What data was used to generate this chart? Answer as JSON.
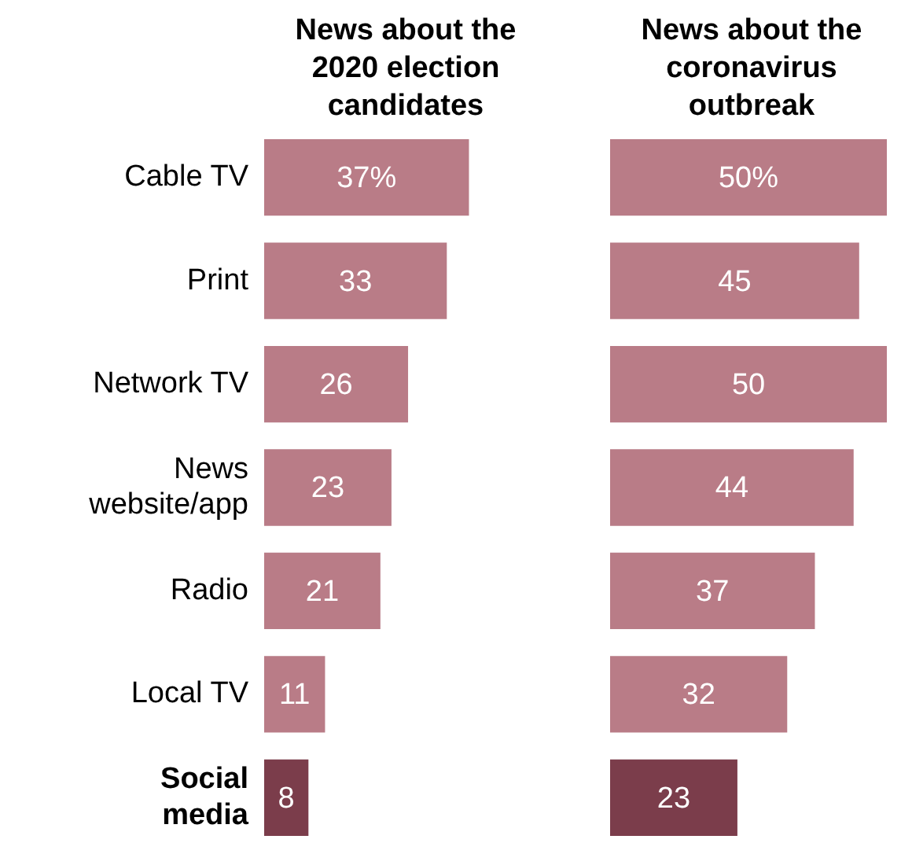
{
  "chart_data": [
    {
      "type": "bar",
      "orientation": "horizontal",
      "title": "News about the 2020 election candidates",
      "categories": [
        "Cable TV",
        "Print",
        "Network TV",
        "News website/app",
        "Radio",
        "Local TV",
        "Social media"
      ],
      "values": [
        37,
        33,
        26,
        23,
        21,
        11,
        8
      ],
      "value_labels": [
        "37%",
        "33",
        "26",
        "23",
        "21",
        "11",
        "8"
      ],
      "colors": [
        "#b97c87",
        "#b97c87",
        "#b97c87",
        "#b97c87",
        "#b97c87",
        "#b97c87",
        "#7b3d4b"
      ],
      "tick_labels": "y",
      "grid": false,
      "legend": false
    },
    {
      "type": "bar",
      "orientation": "horizontal",
      "title": "News about the coronavirus outbreak",
      "categories": [
        null,
        null,
        null,
        null,
        null,
        null,
        null
      ],
      "values": [
        50,
        45,
        50,
        44,
        37,
        32,
        23
      ],
      "value_labels": [
        "50%",
        "45",
        "50",
        "44",
        "37",
        "32",
        "23"
      ],
      "colors": [
        "#b97c87",
        "#b97c87",
        "#b97c87",
        "#b97c87",
        "#b97c87",
        "#b97c87",
        "#7b3d4b"
      ],
      "tick_labels": false,
      "grid": false,
      "legend": false
    }
  ]
}
